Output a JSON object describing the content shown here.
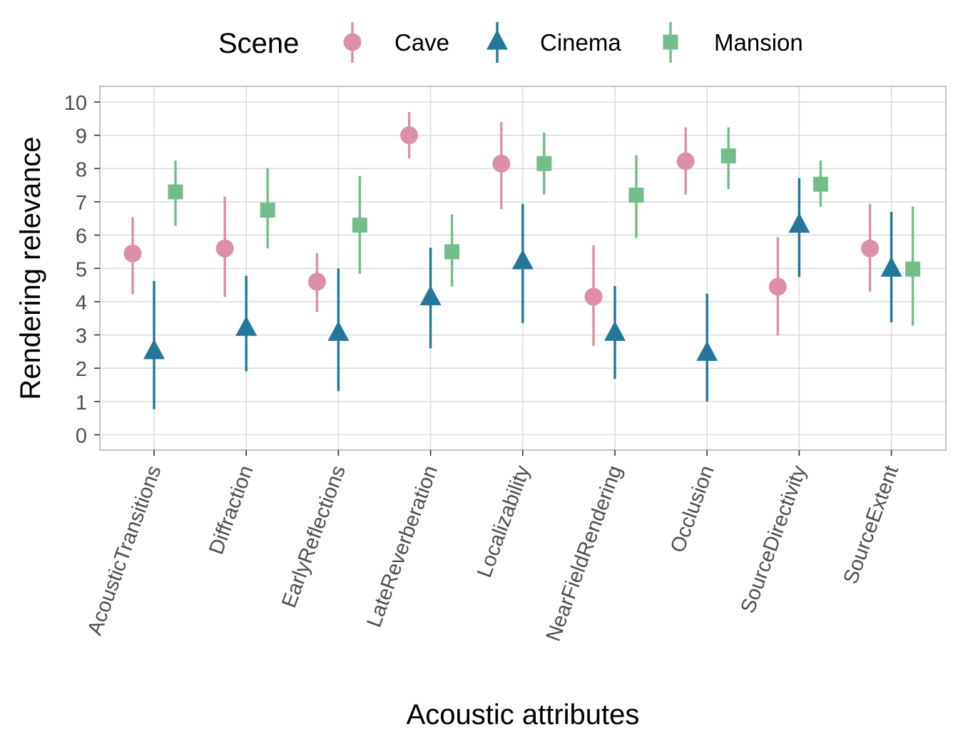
{
  "chart_data": {
    "type": "scatter",
    "xlabel": "Acoustic attributes",
    "ylabel": "Rendering relevance",
    "ylim": [
      -0.45,
      10.45
    ],
    "yticks": [
      0,
      1,
      2,
      3,
      4,
      5,
      6,
      7,
      8,
      9,
      10
    ],
    "grid": true,
    "legend": {
      "title": "Scene",
      "position": "top"
    },
    "categories": [
      "AcousticTransitions",
      "Diffraction",
      "EarlyReflections",
      "LateReverberation",
      "Localizability",
      "NearFieldRendering",
      "Occlusion",
      "SourceDirectivity",
      "SourceExtent"
    ],
    "series": [
      {
        "name": "Cave",
        "color": "#dc8fa6",
        "marker": "circle",
        "values": [
          5.45,
          5.6,
          4.6,
          9.0,
          8.15,
          4.15,
          8.22,
          4.45,
          5.6
        ],
        "lower": [
          4.22,
          4.14,
          3.69,
          8.3,
          6.78,
          2.67,
          7.22,
          2.98,
          4.3
        ],
        "upper": [
          6.54,
          7.16,
          5.46,
          9.7,
          9.4,
          5.7,
          9.24,
          5.94,
          6.94
        ]
      },
      {
        "name": "Cinema",
        "color": "#23779a",
        "marker": "triangle",
        "values": [
          2.5,
          3.2,
          3.05,
          4.12,
          5.2,
          3.05,
          2.45,
          6.3,
          4.98
        ],
        "lower": [
          0.77,
          1.91,
          1.31,
          2.6,
          3.36,
          1.68,
          1.0,
          4.74,
          3.38
        ],
        "upper": [
          4.62,
          4.78,
          5.0,
          5.62,
          6.94,
          4.47,
          4.24,
          7.71,
          6.7
        ]
      },
      {
        "name": "Mansion",
        "color": "#72bd8a",
        "marker": "square",
        "values": [
          7.3,
          6.75,
          6.3,
          5.5,
          8.15,
          7.2,
          8.38,
          7.53,
          4.98
        ],
        "lower": [
          6.28,
          5.6,
          4.84,
          4.45,
          7.22,
          5.91,
          7.38,
          6.84,
          3.28
        ],
        "upper": [
          8.24,
          8.02,
          7.78,
          6.62,
          9.08,
          8.4,
          9.24,
          8.24,
          6.86
        ]
      }
    ]
  }
}
